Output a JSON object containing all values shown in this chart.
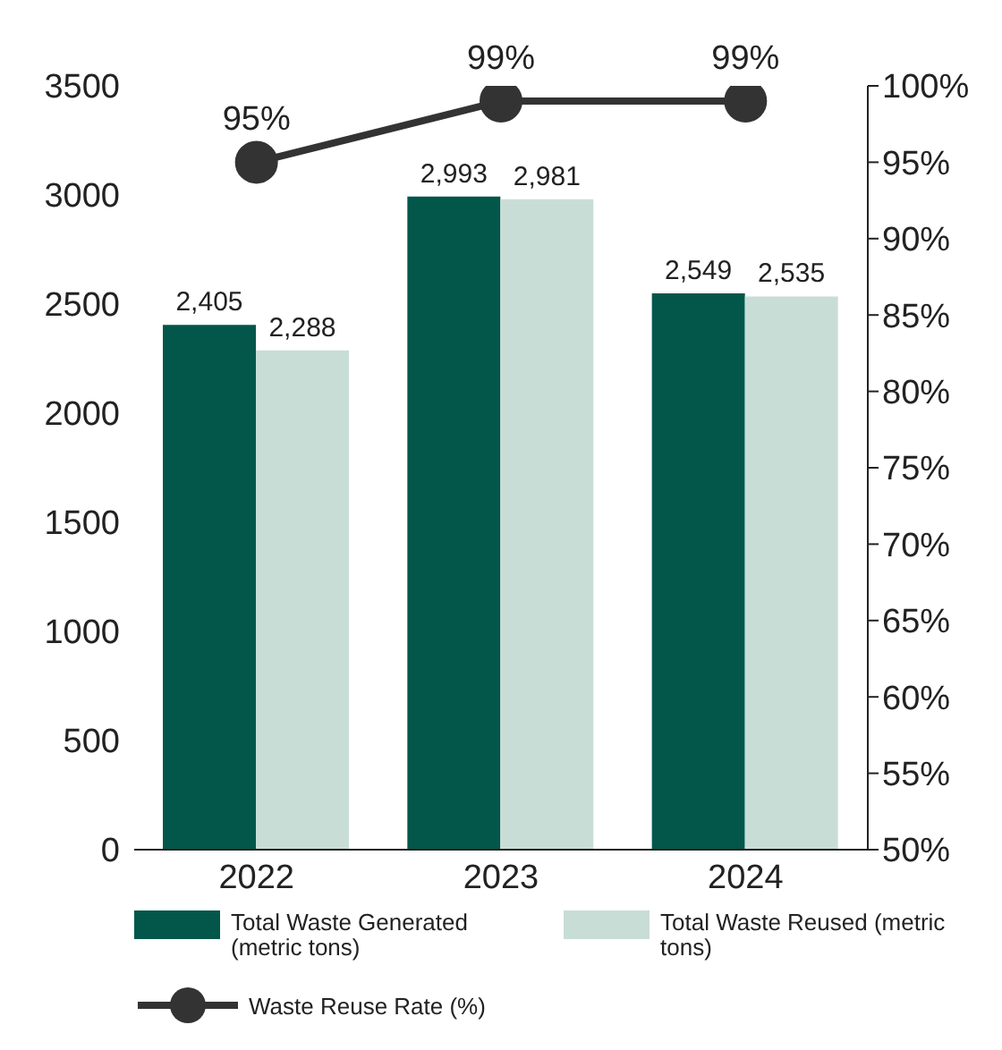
{
  "chart_data": {
    "type": "bar",
    "categories": [
      "2022",
      "2023",
      "2024"
    ],
    "series": [
      {
        "name": "Total Waste Generated (metric tons)",
        "color": "#02574a",
        "values": [
          2405,
          2993,
          2549
        ],
        "value_labels": [
          "2,405",
          "2,993",
          "2,549"
        ]
      },
      {
        "name": "Total Waste Reused (metric tons)",
        "color": "#c9ddd7",
        "values": [
          2288,
          2981,
          2535
        ],
        "value_labels": [
          "2,288",
          "2,981",
          "2,535"
        ]
      },
      {
        "name": "Waste Reuse Rate (%)",
        "type": "line",
        "axis": "y2",
        "color": "#333333",
        "values": [
          95,
          99,
          99
        ],
        "value_labels": [
          "95%",
          "99%",
          "99%"
        ],
        "marker": "circle"
      }
    ],
    "ylim": [
      0,
      3500
    ],
    "yticks": [
      0,
      500,
      1000,
      1500,
      2000,
      2500,
      3000,
      3500
    ],
    "y2lim": [
      50,
      100
    ],
    "y2ticks": [
      {
        "value": 50,
        "label": "50%"
      },
      {
        "value": 55,
        "label": "55%"
      },
      {
        "value": 60,
        "label": "60%"
      },
      {
        "value": 65,
        "label": "65%"
      },
      {
        "value": 70,
        "label": "70%"
      },
      {
        "value": 75,
        "label": "75%"
      },
      {
        "value": 80,
        "label": "80%"
      },
      {
        "value": 85,
        "label": "85%"
      },
      {
        "value": 90,
        "label": "90%"
      },
      {
        "value": 95,
        "label": "95%"
      },
      {
        "value": 100,
        "label": "100%"
      }
    ],
    "grid": false,
    "legend": "bottom"
  }
}
